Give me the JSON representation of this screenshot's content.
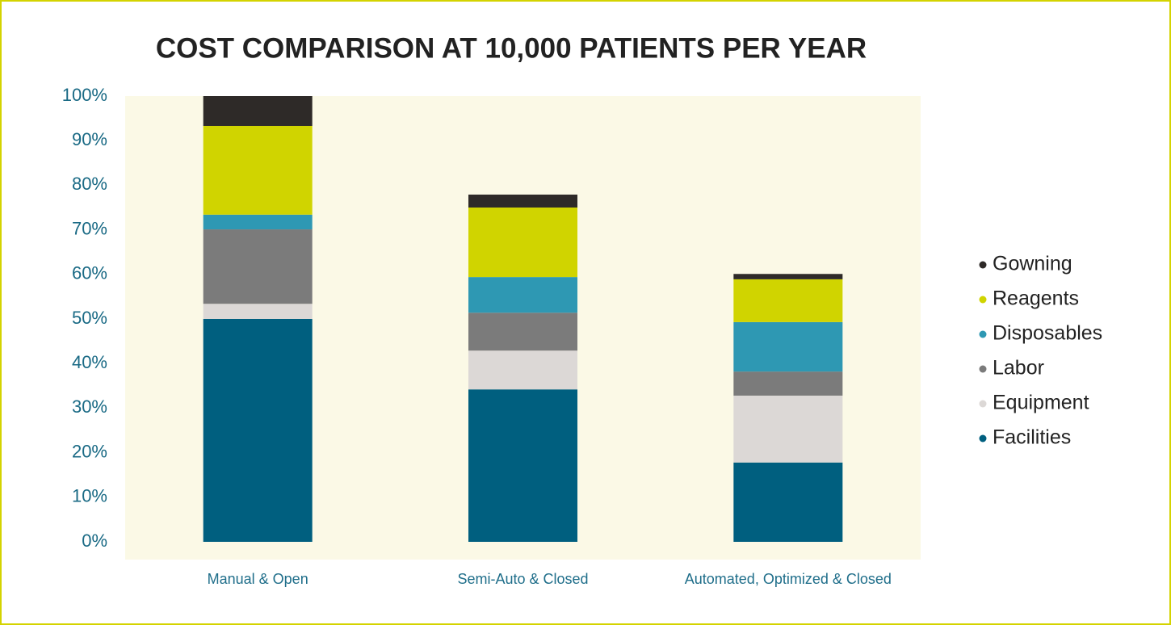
{
  "chart_data": {
    "type": "stacked_bar",
    "title": "COST COMPARISON AT 10,000 PATIENTS PER YEAR",
    "categories": [
      "Manual & Open",
      "Semi-Auto & Closed",
      "Automated, Optimized & Closed"
    ],
    "series": [
      {
        "name": "Facilities",
        "color": "#005f7f",
        "values": [
          50,
          34.2,
          17.8
        ]
      },
      {
        "name": "Equipment",
        "color": "#dcd8d6",
        "values": [
          3.4,
          8.7,
          15.0
        ]
      },
      {
        "name": "Labor",
        "color": "#7b7b7b",
        "values": [
          16.7,
          8.5,
          5.4
        ]
      },
      {
        "name": "Disposables",
        "color": "#2e98b3",
        "values": [
          3.3,
          8.0,
          11.1
        ]
      },
      {
        "name": "Reagents",
        "color": "#d0d400",
        "values": [
          19.9,
          15.6,
          9.6
        ]
      },
      {
        "name": "Gowning",
        "color": "#2e2a28",
        "values": [
          6.7,
          2.9,
          1.2
        ]
      }
    ],
    "ylim": [
      0,
      100
    ],
    "yticks": [
      {
        "value": 0,
        "label": "0%"
      },
      {
        "value": 10,
        "label": "10%"
      },
      {
        "value": 20,
        "label": "20%"
      },
      {
        "value": 30,
        "label": "30%"
      },
      {
        "value": 40,
        "label": "40%"
      },
      {
        "value": 50,
        "label": "50%"
      },
      {
        "value": 60,
        "label": "60%"
      },
      {
        "value": 70,
        "label": "70%"
      },
      {
        "value": 80,
        "label": "80%"
      },
      {
        "value": 90,
        "label": "90%"
      },
      {
        "value": 100,
        "label": "100%"
      }
    ],
    "legend": "right"
  }
}
